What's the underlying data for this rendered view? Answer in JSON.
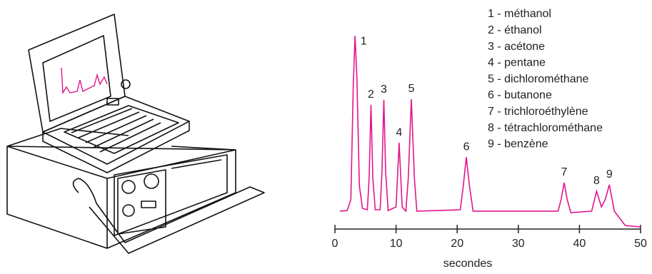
{
  "chart_data": {
    "type": "line",
    "x_label": "secondes",
    "xlim": [
      0,
      50
    ],
    "xticks": [
      0,
      10,
      20,
      30,
      40,
      50
    ],
    "ylim": [
      -5,
      100
    ],
    "series": [
      {
        "name": "chromatogramme",
        "color": "#e0168c",
        "x": [
          0.8,
          2.0,
          2.6,
          3.0,
          3.3,
          3.6,
          4.0,
          4.5,
          5.3,
          5.6,
          5.9,
          6.2,
          6.6,
          7.4,
          7.7,
          8.0,
          8.3,
          8.7,
          10.0,
          10.5,
          11.0,
          11.6,
          12.0,
          12.5,
          13.0,
          13.4,
          20.5,
          21.0,
          21.5,
          22.0,
          22.6,
          36.5,
          37.0,
          37.5,
          38.0,
          38.6,
          42.0,
          42.8,
          43.6,
          44.2,
          44.9,
          45.7,
          47.5,
          50.0
        ],
        "values": [
          3.8,
          4.1,
          9.8,
          69.9,
          96.2,
          73.7,
          17.3,
          5.3,
          4.5,
          21,
          59.8,
          21,
          4.5,
          4.5,
          24.8,
          62.4,
          24.8,
          4.1,
          6,
          39.8,
          6,
          3.8,
          21,
          62.8,
          21,
          3.8,
          4.5,
          17.3,
          32.3,
          17.3,
          3.8,
          3.8,
          9.8,
          18.8,
          9.8,
          3,
          3.8,
          14.3,
          6,
          9.8,
          17.7,
          3.8,
          -3.8,
          -4.5
        ]
      }
    ],
    "peak_labels": [
      {
        "text": "1",
        "x": 3.3
      },
      {
        "text": "2",
        "x": 5.9
      },
      {
        "text": "3",
        "x": 8.0
      },
      {
        "text": "4",
        "x": 10.5
      },
      {
        "text": "5",
        "x": 12.5
      },
      {
        "text": "6",
        "x": 21.5
      },
      {
        "text": "7",
        "x": 37.5
      },
      {
        "text": "8",
        "x": 42.8
      },
      {
        "text": "9",
        "x": 44.9
      }
    ],
    "compounds": [
      "1 - méthanol",
      "2 - éthanol",
      "3 - acétone",
      "4 - pentane",
      "5 - dichlorométhane",
      "6 - butanone",
      "7 - trichloroéthylène",
      "8 - tétrachlorométhane",
      "9 - benzène"
    ]
  }
}
